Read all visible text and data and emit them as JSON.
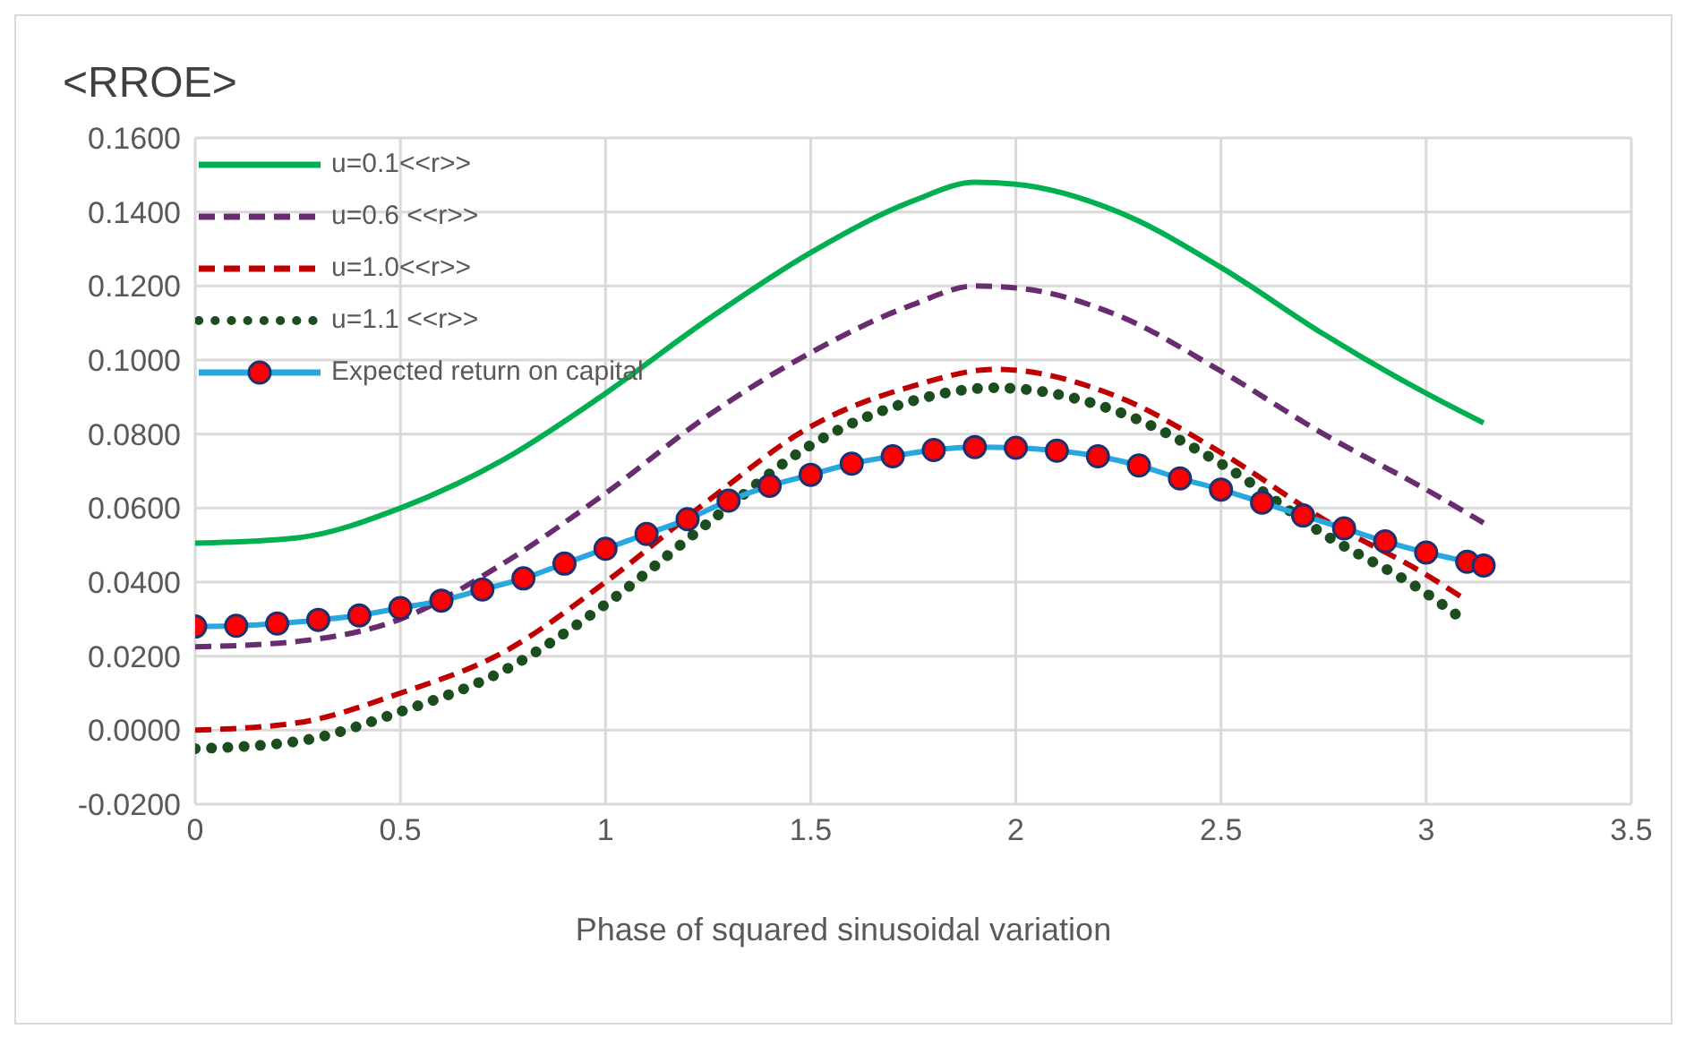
{
  "chart_data": {
    "type": "line",
    "title": "<RROE>",
    "xlabel": "Phase of squared sinusoidal variation",
    "xlim": [
      0,
      3.5
    ],
    "xticks": [
      0,
      0.5,
      1,
      1.5,
      2,
      2.5,
      3,
      3.5
    ],
    "ylim": [
      -0.02,
      0.16
    ],
    "yticks": [
      {
        "value": -0.02,
        "label": "-0.0200"
      },
      {
        "value": 0,
        "label": "0.0000"
      },
      {
        "value": 0.02,
        "label": "0.0200"
      },
      {
        "value": 0.04,
        "label": "0.0400"
      },
      {
        "value": 0.06,
        "label": "0.0600"
      },
      {
        "value": 0.08,
        "label": "0.0800"
      },
      {
        "value": 0.1,
        "label": "0.1000"
      },
      {
        "value": 0.12,
        "label": "0.1200"
      },
      {
        "value": 0.14,
        "label": "0.1400"
      },
      {
        "value": 0.16,
        "label": "0.1600"
      }
    ],
    "grid": true,
    "legend": "top left",
    "series": [
      {
        "name": "u=0.1<<r>>",
        "color": "#00b050",
        "line_style": "solid",
        "marker": "none",
        "x": [
          0,
          0.25,
          0.5,
          0.75,
          1,
          1.25,
          1.5,
          1.75,
          1.9,
          2,
          2.25,
          2.5,
          2.75,
          3,
          3.14
        ],
        "values": [
          0.0505,
          0.052,
          0.06,
          0.073,
          0.091,
          0.111,
          0.129,
          0.143,
          0.148,
          0.1475,
          0.14,
          0.125,
          0.107,
          0.091,
          0.083
        ]
      },
      {
        "name": "u=0.6 <<r>>",
        "color": "#6a2c70",
        "line_style": "dashed",
        "marker": "none",
        "x": [
          0,
          0.25,
          0.5,
          0.75,
          1,
          1.25,
          1.5,
          1.75,
          1.9,
          2,
          2.25,
          2.5,
          2.75,
          3,
          3.14
        ],
        "values": [
          0.0225,
          0.024,
          0.03,
          0.045,
          0.064,
          0.085,
          0.102,
          0.115,
          0.12,
          0.1195,
          0.112,
          0.097,
          0.08,
          0.065,
          0.056
        ]
      },
      {
        "name": "u=1.0<<r>>",
        "color": "#c00000",
        "line_style": "dashed",
        "marker": "none",
        "x": [
          0,
          0.25,
          0.5,
          0.75,
          1,
          1.25,
          1.5,
          1.75,
          1.95,
          2.25,
          2.5,
          2.75,
          3,
          3.1
        ],
        "values": [
          0,
          0.002,
          0.01,
          0.021,
          0.04,
          0.062,
          0.082,
          0.093,
          0.0975,
          0.09,
          0.075,
          0.057,
          0.042,
          0.035
        ]
      },
      {
        "name": "u=1.1 <<r>>",
        "color": "#1b4d1f",
        "line_style": "dotted",
        "marker": "none",
        "x": [
          0,
          0.25,
          0.5,
          0.75,
          1,
          1.25,
          1.5,
          1.75,
          1.95,
          2.25,
          2.5,
          2.75,
          3,
          3.1
        ],
        "values": [
          -0.005,
          -0.003,
          0.005,
          0.016,
          0.034,
          0.056,
          0.077,
          0.089,
          0.0925,
          0.086,
          0.072,
          0.053,
          0.037,
          0.029
        ]
      },
      {
        "name": "Expected return on capital",
        "color": "#ff0000",
        "line_style": "solid",
        "marker": "circle",
        "x": [
          0,
          0.1,
          0.2,
          0.3,
          0.4,
          0.5,
          0.6,
          0.7,
          0.8,
          0.9,
          1,
          1.1,
          1.2,
          1.3,
          1.4,
          1.5,
          1.6,
          1.7,
          1.8,
          1.9,
          2,
          2.1,
          2.2,
          2.3,
          2.4,
          2.5,
          2.6,
          2.7,
          2.8,
          2.9,
          3,
          3.1,
          3.14
        ],
        "values": [
          0.028,
          0.0282,
          0.0288,
          0.0298,
          0.031,
          0.033,
          0.035,
          0.038,
          0.041,
          0.045,
          0.049,
          0.053,
          0.057,
          0.062,
          0.066,
          0.069,
          0.072,
          0.074,
          0.0757,
          0.0765,
          0.0763,
          0.0755,
          0.074,
          0.0715,
          0.068,
          0.065,
          0.0615,
          0.058,
          0.0545,
          0.051,
          0.048,
          0.0455,
          0.0445
        ]
      }
    ]
  }
}
